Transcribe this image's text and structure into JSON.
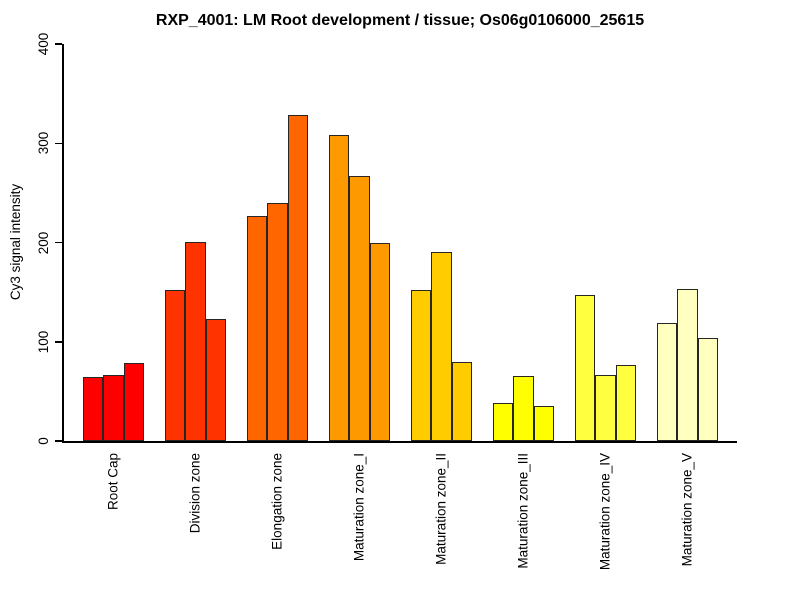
{
  "chart_data": {
    "type": "bar",
    "title": "RXP_4001: LM Root development / tissue; Os06g0106000_25615",
    "xlabel": "",
    "ylabel": "Cy3 signal intensity",
    "ylim": [
      0,
      400
    ],
    "yticks": [
      0,
      100,
      200,
      300,
      400
    ],
    "grid": false,
    "legend": "none",
    "bars_per_group": 3,
    "bar_border_color": "#262626",
    "axis_color": "#000000",
    "categories": [
      "Root Cap",
      "Division zone",
      "Elongation zone",
      "Maturation zone_I",
      "Maturation zone_II",
      "Maturation zone_III",
      "Maturation zone_IV",
      "Maturation zone_V"
    ],
    "groups": [
      {
        "category": "Root Cap",
        "color": "#FF0000",
        "values": [
          64,
          67,
          79
        ]
      },
      {
        "category": "Division zone",
        "color": "#FF3300",
        "values": [
          152,
          201,
          123
        ]
      },
      {
        "category": "Elongation zone",
        "color": "#FF6600",
        "values": [
          227,
          240,
          328
        ]
      },
      {
        "category": "Maturation zone_I",
        "color": "#FF9900",
        "values": [
          308,
          267,
          200
        ]
      },
      {
        "category": "Maturation zone_II",
        "color": "#FFCC00",
        "values": [
          152,
          190,
          80
        ]
      },
      {
        "category": "Maturation zone_III",
        "color": "#FFFF00",
        "values": [
          38,
          65,
          35
        ]
      },
      {
        "category": "Maturation zone_IV",
        "color": "#FFFF40",
        "values": [
          147,
          67,
          77
        ]
      },
      {
        "category": "Maturation zone_V",
        "color": "#FFFFBF",
        "values": [
          119,
          153,
          104
        ]
      }
    ]
  }
}
